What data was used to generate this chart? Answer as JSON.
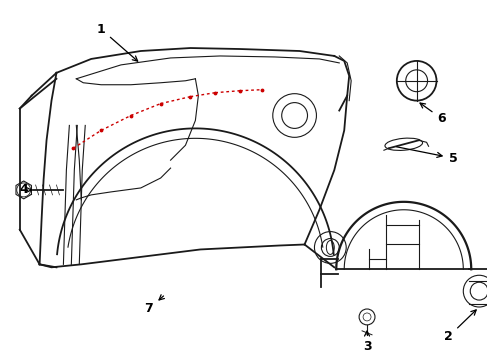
{
  "bg_color": "#ffffff",
  "line_color": "#1a1a1a",
  "red_dot_color": "#cc0000",
  "label_color": "#000000",
  "figsize": [
    4.89,
    3.6
  ],
  "dpi": 100
}
